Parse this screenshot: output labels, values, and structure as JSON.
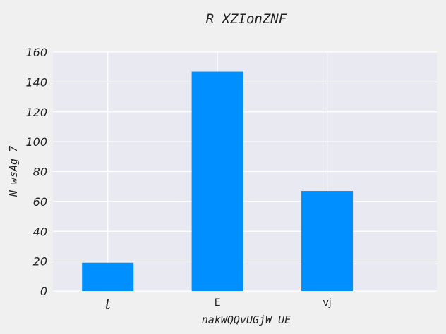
{
  "chart_data": {
    "type": "bar",
    "title": "R XZIonZNF",
    "xlabel": "nakWQQvUGjW UE",
    "ylabel": "N wsAg 7",
    "categories": [
      "t",
      "E",
      "vj"
    ],
    "values": [
      19,
      147,
      67
    ],
    "ylim": [
      0,
      160
    ],
    "yticks": [
      0,
      20,
      40,
      60,
      80,
      100,
      120,
      140,
      160
    ],
    "bar_color": "#008fff",
    "plot_background": "#e9e9f2",
    "grid": true,
    "legend": "none"
  }
}
